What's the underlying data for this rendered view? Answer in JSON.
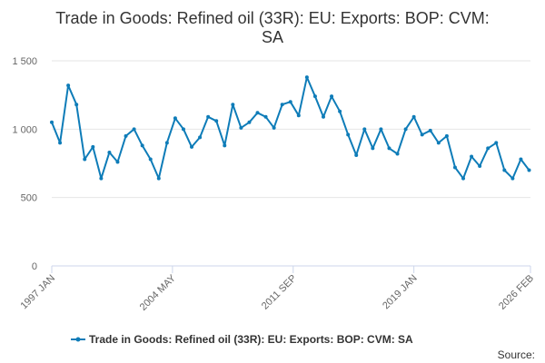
{
  "chart_data": {
    "type": "line",
    "title": "Trade in Goods: Refined oil (33R): EU: Exports: BOP: CVM: SA",
    "xlabel": "",
    "ylabel": "",
    "ylim": [
      0,
      1500
    ],
    "yticks": [
      "0",
      "500",
      "1 000",
      "1 500"
    ],
    "ytick_values": [
      0,
      500,
      1000,
      1500
    ],
    "xlim": [
      1997.0,
      2026.083
    ],
    "xticks": [
      "1997 JAN",
      "2004 MAY",
      "2011 SEP",
      "2019 JAN",
      "2026 FEB"
    ],
    "xtick_values": [
      1997.0,
      2004.333,
      2011.667,
      2019.0,
      2026.083
    ],
    "grid": true,
    "legend_position": "bottom",
    "series": [
      {
        "name": "Trade in Goods: Refined oil (33R): EU: Exports: BOP: CVM: SA",
        "color": "#0e7cb8",
        "x": [
          1997.0,
          1997.5,
          1998.0,
          1998.5,
          1999.0,
          1999.5,
          2000.0,
          2000.5,
          2001.0,
          2001.5,
          2002.0,
          2002.5,
          2003.0,
          2003.5,
          2004.0,
          2004.5,
          2005.0,
          2005.5,
          2006.0,
          2006.5,
          2007.0,
          2007.5,
          2008.0,
          2008.5,
          2009.0,
          2009.5,
          2010.0,
          2010.5,
          2011.0,
          2011.5,
          2012.0,
          2012.5,
          2013.0,
          2013.5,
          2014.0,
          2014.5,
          2015.0,
          2015.5,
          2016.0,
          2016.5,
          2017.0,
          2017.5,
          2018.0,
          2018.5,
          2019.0,
          2019.5,
          2020.0,
          2020.5,
          2021.0,
          2021.5,
          2022.0,
          2022.5,
          2023.0,
          2023.5,
          2024.0,
          2024.5,
          2025.0,
          2025.5,
          2026.0
        ],
        "values": [
          1050,
          900,
          1320,
          1180,
          780,
          870,
          640,
          830,
          760,
          950,
          1000,
          880,
          780,
          640,
          900,
          1080,
          1000,
          870,
          940,
          1090,
          1060,
          880,
          1180,
          1010,
          1050,
          1120,
          1090,
          1010,
          1180,
          1200,
          1100,
          1380,
          1240,
          1090,
          1240,
          1130,
          960,
          810,
          1000,
          860,
          1000,
          860,
          820,
          1000,
          1090,
          960,
          990,
          900,
          950,
          720,
          640,
          800,
          730,
          860,
          900,
          700,
          640,
          780,
          700
        ]
      }
    ]
  },
  "legend": {
    "label": "Trade in Goods: Refined oil (33R): EU: Exports: BOP: CVM: SA"
  },
  "source_label": "Source:"
}
